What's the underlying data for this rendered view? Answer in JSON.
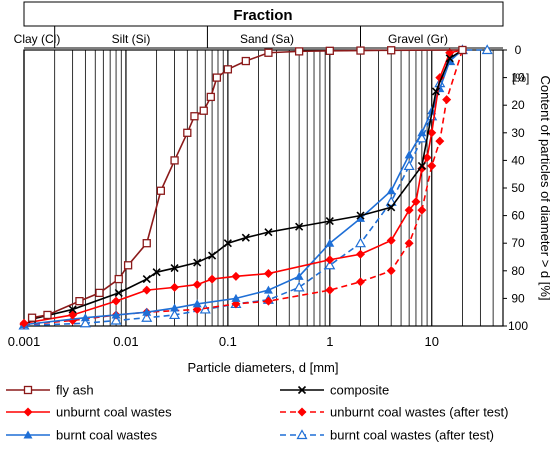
{
  "chart_data": {
    "type": "line",
    "title": "Fraction",
    "xlabel": "Particle diameters, d [mm]",
    "ylabel": "Content of particles of diameter > d [%]",
    "xscale": "log",
    "xlim": [
      0.001,
      50
    ],
    "ylim": [
      0,
      100
    ],
    "y_inverted": true,
    "y_axis_side": "right",
    "grid": "vertical log gridlines",
    "x_ticks": [
      {
        "value": 0.001,
        "label": "0.001"
      },
      {
        "value": 0.01,
        "label": "0.01"
      },
      {
        "value": 0.1,
        "label": "0.1"
      },
      {
        "value": 1,
        "label": "1"
      },
      {
        "value": 10,
        "label": "10"
      }
    ],
    "y_ticks": [
      {
        "value": 0,
        "label": "0"
      },
      {
        "value": 10,
        "label": "10"
      },
      {
        "value": 20,
        "label": "20"
      },
      {
        "value": 30,
        "label": "30"
      },
      {
        "value": 40,
        "label": "40"
      },
      {
        "value": 50,
        "label": "50"
      },
      {
        "value": 60,
        "label": "60"
      },
      {
        "value": 70,
        "label": "70"
      },
      {
        "value": 80,
        "label": "80"
      },
      {
        "value": 90,
        "label": "90"
      },
      {
        "value": 100,
        "label": "100"
      }
    ],
    "y_unit_label": "[%]",
    "fractions": [
      {
        "label": "Clay (Cl)",
        "from": 0.001,
        "to": 0.002
      },
      {
        "label": "Silt (Si)",
        "from": 0.002,
        "to": 0.063
      },
      {
        "label": "Sand (Sa)",
        "from": 0.063,
        "to": 2
      },
      {
        "label": "Gravel (Gr)",
        "from": 2,
        "to": 50
      }
    ],
    "legend_position": "bottom",
    "series": [
      {
        "name": "fly ash",
        "color": "#8b1a1a",
        "line": "solid",
        "marker": "open-square",
        "points": [
          [
            0.0012,
            97
          ],
          [
            0.0017,
            96
          ],
          [
            0.0035,
            91
          ],
          [
            0.0055,
            88
          ],
          [
            0.0085,
            83
          ],
          [
            0.0105,
            78
          ],
          [
            0.016,
            70
          ],
          [
            0.022,
            51
          ],
          [
            0.03,
            40
          ],
          [
            0.04,
            30
          ],
          [
            0.047,
            24
          ],
          [
            0.058,
            22
          ],
          [
            0.068,
            17
          ],
          [
            0.078,
            10
          ],
          [
            0.1,
            7
          ],
          [
            0.15,
            4
          ],
          [
            0.25,
            1
          ],
          [
            0.5,
            0.5
          ],
          [
            1,
            0.3
          ],
          [
            2,
            0.2
          ],
          [
            4,
            0.1
          ],
          [
            20,
            0
          ]
        ]
      },
      {
        "name": "composite",
        "color": "#000000",
        "line": "solid",
        "marker": "x",
        "points": [
          [
            0.0012,
            97.5
          ],
          [
            0.003,
            94
          ],
          [
            0.0085,
            88
          ],
          [
            0.016,
            83
          ],
          [
            0.02,
            80.5
          ],
          [
            0.03,
            79
          ],
          [
            0.05,
            77
          ],
          [
            0.07,
            74.5
          ],
          [
            0.1,
            70
          ],
          [
            0.15,
            68
          ],
          [
            0.25,
            66
          ],
          [
            0.5,
            64
          ],
          [
            1,
            62
          ],
          [
            2,
            60
          ],
          [
            4,
            57
          ],
          [
            8,
            42
          ],
          [
            11,
            15
          ],
          [
            15,
            3
          ],
          [
            20,
            0
          ]
        ]
      },
      {
        "name": "unburnt coal wastes",
        "color": "#ff0000",
        "line": "solid",
        "marker": "filled-diamond",
        "points": [
          [
            0.001,
            99
          ],
          [
            0.003,
            96
          ],
          [
            0.008,
            91
          ],
          [
            0.016,
            87
          ],
          [
            0.03,
            86
          ],
          [
            0.05,
            85
          ],
          [
            0.07,
            83
          ],
          [
            0.12,
            82
          ],
          [
            0.25,
            81
          ],
          [
            1,
            76
          ],
          [
            2,
            74
          ],
          [
            4,
            69
          ],
          [
            6,
            58
          ],
          [
            7,
            55
          ],
          [
            8,
            43
          ],
          [
            9,
            39
          ],
          [
            10,
            30
          ],
          [
            12,
            10
          ],
          [
            15,
            1
          ],
          [
            20,
            0
          ]
        ]
      },
      {
        "name": "unburnt coal wastes (after test)",
        "color": "#ff0000",
        "line": "dashed",
        "marker": "filled-diamond",
        "points": [
          [
            0.001,
            99.5
          ],
          [
            0.003,
            98
          ],
          [
            0.008,
            96
          ],
          [
            0.016,
            95
          ],
          [
            0.05,
            94
          ],
          [
            0.12,
            92
          ],
          [
            0.25,
            91
          ],
          [
            1,
            87
          ],
          [
            2,
            84
          ],
          [
            4,
            80
          ],
          [
            6,
            70
          ],
          [
            8,
            58
          ],
          [
            10,
            42
          ],
          [
            12,
            33
          ],
          [
            14,
            18
          ],
          [
            20,
            0
          ]
        ]
      },
      {
        "name": "burnt coal wastes",
        "color": "#1f6fd6",
        "line": "solid",
        "marker": "filled-triangle",
        "points": [
          [
            0.001,
            99.5
          ],
          [
            0.004,
            97
          ],
          [
            0.008,
            96
          ],
          [
            0.016,
            95
          ],
          [
            0.03,
            93.5
          ],
          [
            0.05,
            92
          ],
          [
            0.12,
            90
          ],
          [
            0.25,
            87
          ],
          [
            0.5,
            82
          ],
          [
            1,
            70
          ],
          [
            2,
            61
          ],
          [
            4,
            51
          ],
          [
            6,
            38
          ],
          [
            8,
            30
          ],
          [
            10,
            22
          ],
          [
            12,
            14
          ],
          [
            15,
            4
          ],
          [
            20,
            0
          ]
        ]
      },
      {
        "name": "burnt coal wastes (after test)",
        "color": "#1f6fd6",
        "line": "dashed",
        "marker": "open-triangle",
        "points": [
          [
            0.001,
            99.8
          ],
          [
            0.004,
            99
          ],
          [
            0.008,
            98
          ],
          [
            0.016,
            97
          ],
          [
            0.03,
            96
          ],
          [
            0.06,
            94
          ],
          [
            0.12,
            92
          ],
          [
            0.25,
            90.5
          ],
          [
            0.5,
            86
          ],
          [
            1,
            78
          ],
          [
            2,
            70
          ],
          [
            4,
            55
          ],
          [
            6,
            42
          ],
          [
            8,
            32
          ],
          [
            10,
            24
          ],
          [
            12,
            12
          ],
          [
            15,
            4
          ],
          [
            20,
            0
          ],
          [
            35,
            0
          ]
        ]
      }
    ]
  }
}
